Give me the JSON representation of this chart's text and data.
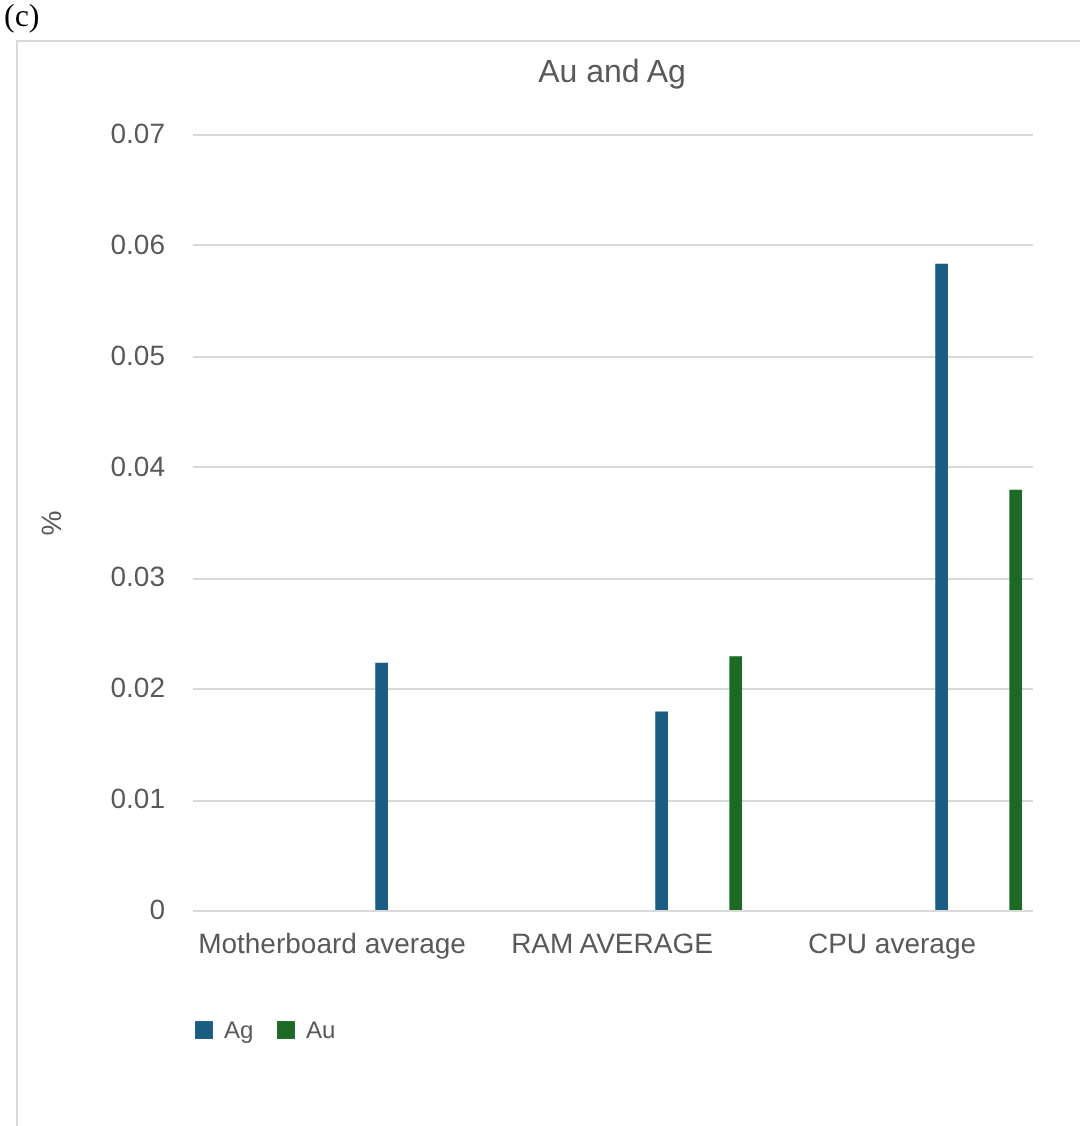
{
  "chart_data": {
    "type": "bar",
    "title": "Au and Ag",
    "ylabel": "%",
    "annotations": [
      "(c)"
    ],
    "categories": [
      "Motherboard average",
      "RAM AVERAGE",
      "CPU average"
    ],
    "series": [
      {
        "name": "Ag",
        "color": "#175e82",
        "values": [
          0.0223,
          0.0179,
          0.0583
        ]
      },
      {
        "name": "Au",
        "color": "#1c6b25",
        "values": [
          null,
          0.0229,
          0.0379
        ]
      }
    ],
    "ylim": [
      0,
      0.07
    ],
    "yticks": [
      0,
      0.01,
      0.02,
      0.03,
      0.04,
      0.05,
      0.06,
      0.07
    ],
    "grid": "y",
    "legend": "bottom"
  }
}
